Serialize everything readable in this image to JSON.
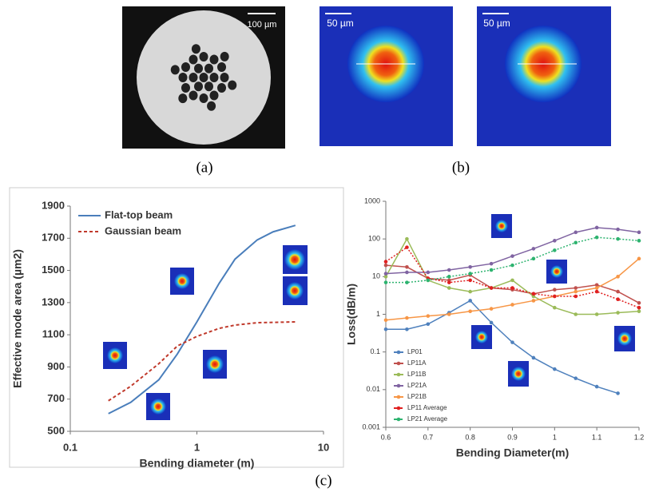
{
  "panels": {
    "a": {
      "label": "(a)",
      "scale": "100 µm"
    },
    "b": {
      "label": "(b)",
      "scales": [
        "50 µm",
        "50 µm"
      ]
    },
    "c": {
      "label": "(c)"
    }
  },
  "chart_data": [
    {
      "type": "line",
      "xlabel": "Bending diameter (m)",
      "ylabel": "Effective mode area (µm2)",
      "xscale": "log",
      "xlim": [
        0.1,
        10
      ],
      "xticks": [
        0.1,
        1,
        10
      ],
      "ylim": [
        500,
        1900
      ],
      "yticks": [
        500,
        700,
        900,
        1100,
        1300,
        1500,
        1700,
        1900
      ],
      "legend": "upper left",
      "series": [
        {
          "name": "Flat-top beam",
          "color": "#4a7ebb",
          "dash": false,
          "x": [
            0.2,
            0.3,
            0.5,
            0.7,
            1,
            1.5,
            2,
            3,
            4,
            6
          ],
          "values": [
            610,
            680,
            820,
            980,
            1180,
            1420,
            1570,
            1690,
            1740,
            1780
          ]
        },
        {
          "name": "Gaussian beam",
          "color": "#c0392b",
          "dash": true,
          "x": [
            0.2,
            0.3,
            0.5,
            0.7,
            1,
            1.5,
            2,
            3,
            6
          ],
          "values": [
            690,
            780,
            920,
            1030,
            1090,
            1140,
            1160,
            1175,
            1180
          ]
        }
      ]
    },
    {
      "type": "line",
      "xlabel": "Bending Diameter(m)",
      "ylabel": "Loss(dB/m)",
      "yscale": "log",
      "markers": true,
      "xlim": [
        0.6,
        1.2
      ],
      "xticks": [
        0.6,
        0.7,
        0.8,
        0.9,
        1,
        1.1,
        1.2
      ],
      "ylim": [
        0.001,
        1000
      ],
      "yticks": [
        0.001,
        0.01,
        0.1,
        1,
        10,
        100,
        1000
      ],
      "legend": "lower left",
      "x": [
        0.6,
        0.65,
        0.7,
        0.75,
        0.8,
        0.85,
        0.9,
        0.95,
        1,
        1.05,
        1.1,
        1.15,
        1.2
      ],
      "series": [
        {
          "name": "LP01",
          "color": "#4f81bd",
          "dash": false,
          "values": [
            0.4,
            0.4,
            0.55,
            1.1,
            2.3,
            0.6,
            0.18,
            0.07,
            0.035,
            0.02,
            0.012,
            0.008,
            null
          ]
        },
        {
          "name": "LP11A",
          "color": "#c0504d",
          "dash": false,
          "values": [
            20,
            18,
            9,
            8,
            11,
            5,
            4.5,
            3.5,
            4.5,
            5,
            6,
            4,
            2
          ]
        },
        {
          "name": "LP11B",
          "color": "#9bbb59",
          "dash": false,
          "values": [
            10,
            100,
            8,
            5,
            4,
            5,
            8,
            3,
            1.5,
            1,
            1,
            1.1,
            1.2
          ]
        },
        {
          "name": "LP21A",
          "color": "#8064a2",
          "dash": false,
          "values": [
            12,
            13,
            13,
            15,
            18,
            22,
            35,
            55,
            90,
            150,
            200,
            180,
            150
          ]
        },
        {
          "name": "LP21B",
          "color": "#f79646",
          "dash": false,
          "values": [
            0.7,
            0.8,
            0.9,
            1,
            1.2,
            1.4,
            1.8,
            2.3,
            3,
            4,
            5,
            10,
            30
          ]
        },
        {
          "name": "LP11 Average",
          "color": "#e02020",
          "dash": true,
          "values": [
            25,
            60,
            9,
            7,
            8,
            5,
            5,
            3.5,
            3,
            3,
            4,
            2.5,
            1.5
          ]
        },
        {
          "name": "LP21 Average",
          "color": "#2db36f",
          "dash": true,
          "values": [
            7,
            7,
            8,
            10,
            12,
            15,
            20,
            30,
            50,
            80,
            110,
            100,
            90
          ]
        }
      ]
    }
  ]
}
